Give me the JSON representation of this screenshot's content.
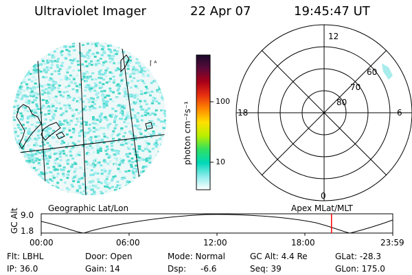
{
  "header": {
    "instrument": "Ultraviolet Imager",
    "date": "22 Apr 07",
    "time": "19:45:47 UT"
  },
  "colorbar": {
    "label": "photon cm⁻²s⁻¹",
    "ticks": [
      {
        "label": "100",
        "value": 100
      },
      {
        "label": "10",
        "value": 10
      }
    ],
    "range": [
      2,
      600
    ],
    "colors": [
      "#1a0a2a",
      "#5a0a3a",
      "#aa0018",
      "#e83010",
      "#ff8800",
      "#ffe000",
      "#b8f000",
      "#30e060",
      "#00d8b8",
      "#8cecec",
      "#ffffff"
    ]
  },
  "geo_map": {
    "label": "Geographic Lat/Lon",
    "fill_color": "#7ee6e6",
    "grid_label": "⌈ ᴬ"
  },
  "polar": {
    "label": "Apex MLat/MLT",
    "mlt_labels": {
      "top": "12",
      "bottom": "0",
      "left": "18",
      "right": "6"
    },
    "mlat_labels": [
      "60",
      "70",
      "80"
    ]
  },
  "timeline": {
    "ylabel": "GC Alt",
    "yticks": [
      "9.0",
      "1.8"
    ],
    "xticks": [
      "00:00",
      "06:00",
      "12:00",
      "18:00",
      "23:59"
    ],
    "current_fraction": 0.8257,
    "marker_color": "#ff0000"
  },
  "info": {
    "flt": "Flt: LBHL",
    "ip": "IP: 36.0",
    "door": "Door: Open",
    "gain": "Gain: 14",
    "mode": "Mode: Normal",
    "dsp_label": "Dsp:",
    "dsp_value": "-6.6",
    "gcalt": "GC Alt: 4.4 Re",
    "seq": "Seq: 39",
    "glat": "GLat: -28.3",
    "glon": "GLon: 175.0"
  }
}
